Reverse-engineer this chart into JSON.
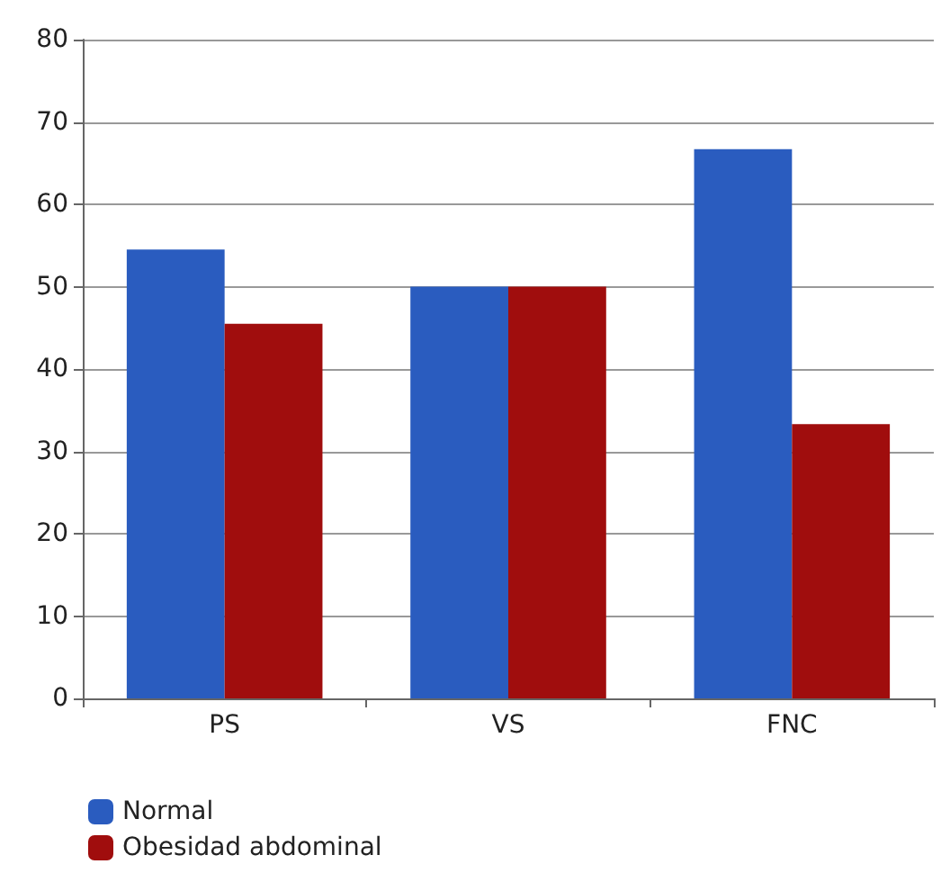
{
  "chart_data": {
    "type": "bar",
    "categories": [
      "PS",
      "VS",
      "FNC"
    ],
    "series": [
      {
        "name": "Normal",
        "color": "#2a5cbf",
        "values": [
          54.5,
          50,
          66.7
        ]
      },
      {
        "name": "Obesidad abdominal",
        "color": "#a00d0d",
        "values": [
          45.5,
          50,
          33.3
        ]
      }
    ],
    "ylim": [
      0,
      80
    ],
    "yticks": [
      0,
      10,
      20,
      30,
      40,
      50,
      60,
      70,
      80
    ],
    "grid": "y",
    "legend": "bottom left"
  }
}
